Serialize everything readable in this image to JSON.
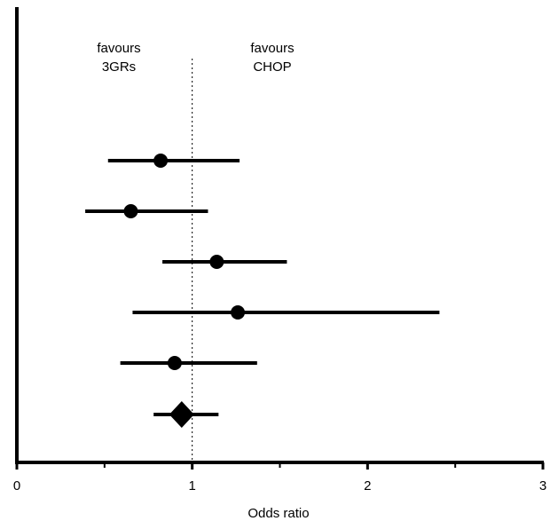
{
  "chart_data": {
    "type": "forest",
    "title": "",
    "xlabel": "Odds ratio",
    "ylabel": "",
    "xlim": [
      0,
      3
    ],
    "x_ticks": [
      "0",
      "1",
      "2",
      "3"
    ],
    "reference_line": 1,
    "annotations": {
      "left": [
        "favours",
        "3GRs"
      ],
      "right": [
        "favours",
        "CHOP"
      ]
    },
    "studies": [
      {
        "estimate": 0.82,
        "ci_low": 0.52,
        "ci_high": 1.27
      },
      {
        "estimate": 0.65,
        "ci_low": 0.39,
        "ci_high": 1.09
      },
      {
        "estimate": 1.14,
        "ci_low": 0.83,
        "ci_high": 1.54
      },
      {
        "estimate": 1.26,
        "ci_low": 0.66,
        "ci_high": 2.41
      },
      {
        "estimate": 0.9,
        "ci_low": 0.59,
        "ci_high": 1.37
      }
    ],
    "pooled": {
      "estimate": 0.94,
      "ci_low": 0.78,
      "ci_high": 1.15
    },
    "grid": false,
    "legend": "none"
  }
}
